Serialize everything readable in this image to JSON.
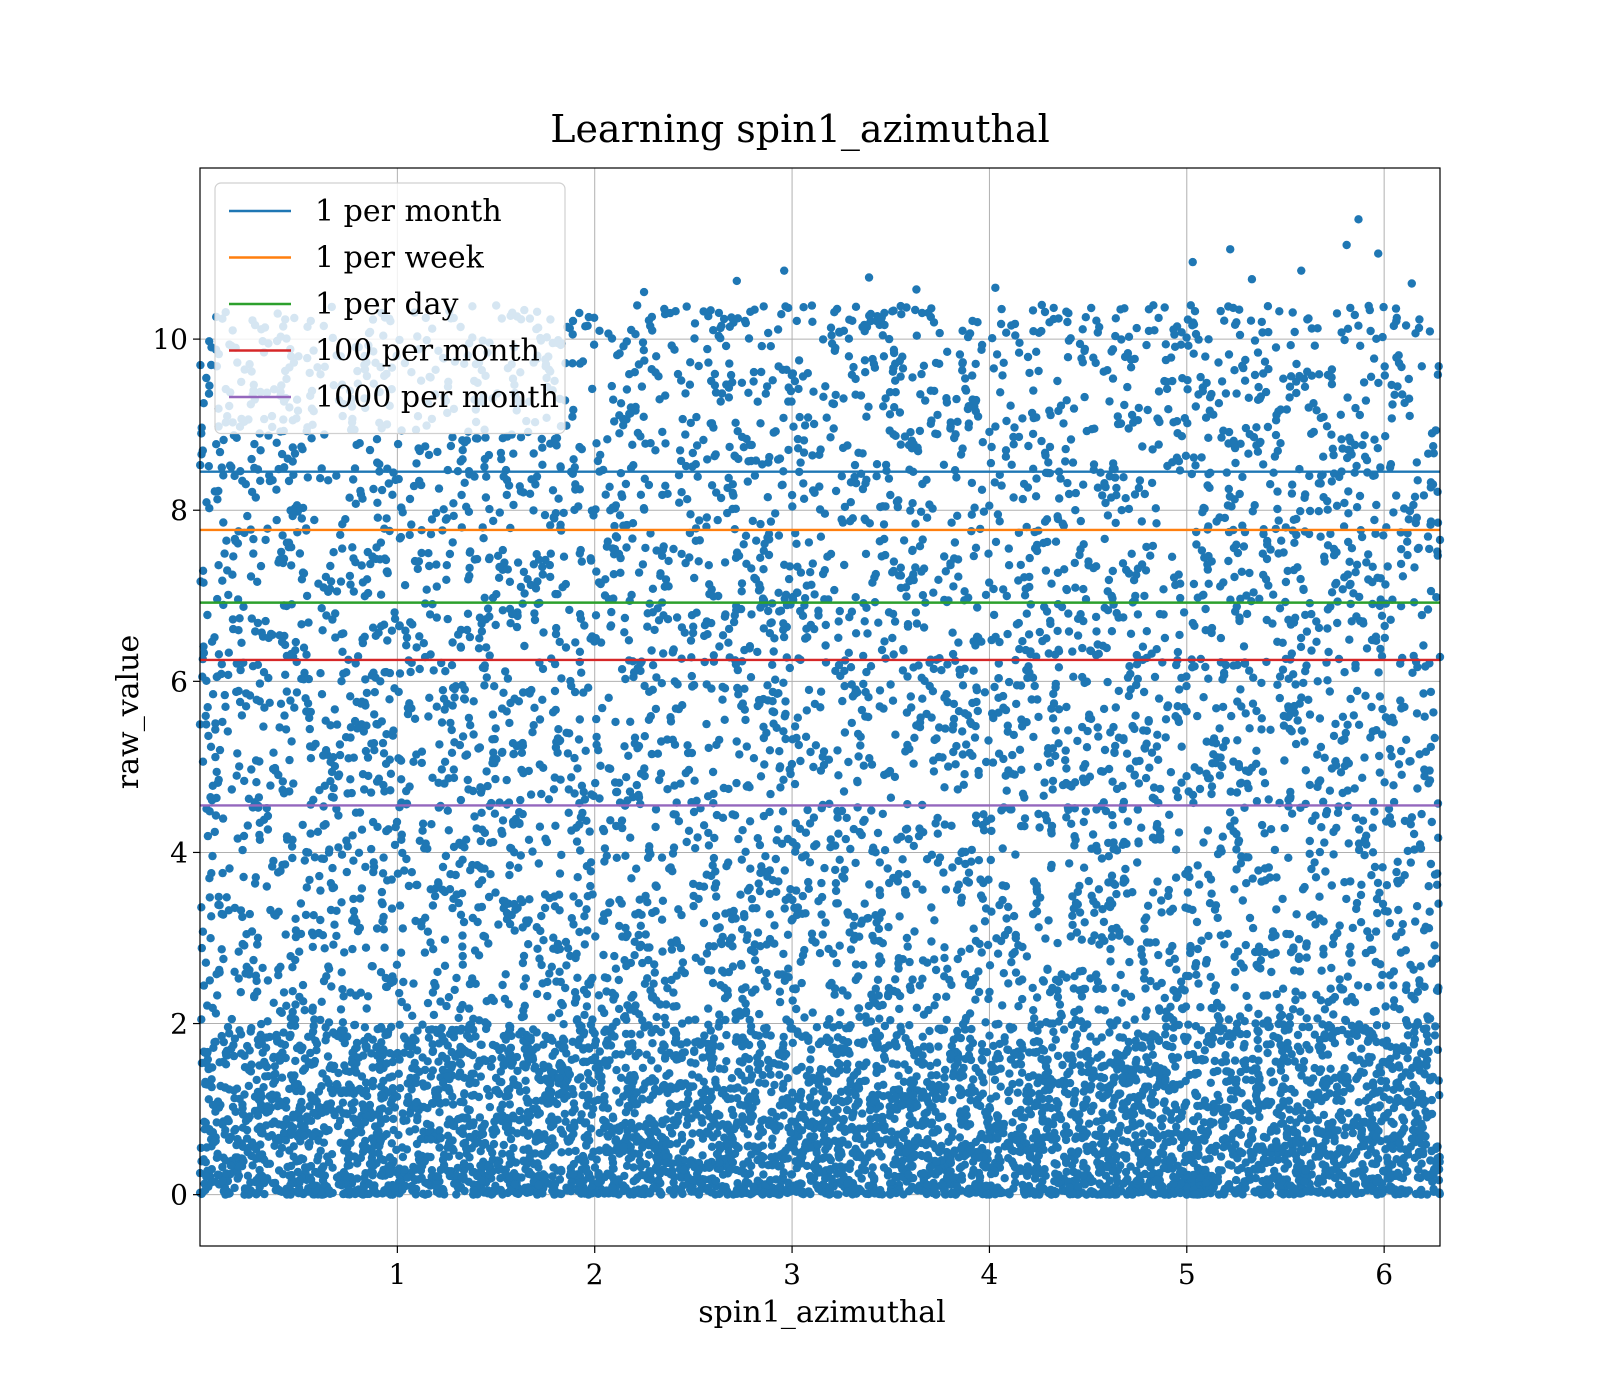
{
  "chart_data": {
    "type": "scatter",
    "title": "Learning spin1_azimuthal",
    "xlabel": "spin1_azimuthal",
    "ylabel": "raw_value",
    "xlim": [
      0.0,
      6.283
    ],
    "ylim": [
      -0.6,
      12.0
    ],
    "x_ticks": [
      1,
      2,
      3,
      4,
      5,
      6
    ],
    "y_ticks": [
      0,
      2,
      4,
      6,
      8,
      10
    ],
    "grid": true,
    "legend_position": "top-left",
    "scatter_color": "#1f77b4",
    "scatter_description": {
      "point_count_approx": 10000,
      "x_range": [
        0.0,
        6.283
      ],
      "y_range": [
        0.0,
        11.4
      ],
      "dense_band_y": [
        0.0,
        2.0
      ]
    },
    "outlier_points": [
      {
        "x": 5.87,
        "y": 11.4
      },
      {
        "x": 5.81,
        "y": 11.1
      },
      {
        "x": 5.22,
        "y": 11.05
      },
      {
        "x": 5.97,
        "y": 11.0
      },
      {
        "x": 5.03,
        "y": 10.9
      },
      {
        "x": 2.96,
        "y": 10.8
      },
      {
        "x": 5.58,
        "y": 10.8
      },
      {
        "x": 2.72,
        "y": 10.68
      },
      {
        "x": 3.39,
        "y": 10.72
      },
      {
        "x": 5.33,
        "y": 10.7
      },
      {
        "x": 6.14,
        "y": 10.65
      },
      {
        "x": 4.03,
        "y": 10.6
      },
      {
        "x": 3.63,
        "y": 10.58
      },
      {
        "x": 2.25,
        "y": 10.55
      }
    ],
    "series": [
      {
        "name": "1 per month",
        "y": 8.45,
        "color": "#1f77b4"
      },
      {
        "name": "1 per week",
        "y": 7.77,
        "color": "#ff7f0e"
      },
      {
        "name": "1 per day",
        "y": 6.92,
        "color": "#2ca02c"
      },
      {
        "name": "100 per month",
        "y": 6.25,
        "color": "#d62728"
      },
      {
        "name": "1000 per month",
        "y": 4.55,
        "color": "#9467bd"
      }
    ]
  }
}
